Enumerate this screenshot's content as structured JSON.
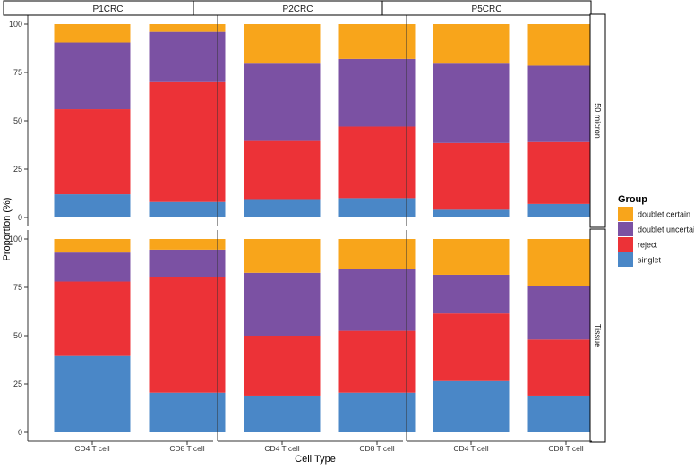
{
  "chart_data": {
    "type": "bar",
    "stacked": true,
    "xlabel": "Cell Type",
    "ylabel": "Proportion (%)",
    "ylim": [
      0,
      100
    ],
    "yticks": [
      0,
      25,
      50,
      75,
      100
    ],
    "categories": [
      "CD4 T cell",
      "CD8 T cell"
    ],
    "column_facets": [
      "P1CRC",
      "P2CRC",
      "P5CRC"
    ],
    "row_facets": [
      "50 micron",
      "Tissue"
    ],
    "legend": {
      "title": "Group",
      "position": "right",
      "entries": [
        {
          "name": "doublet certain",
          "color": "#F8A51B"
        },
        {
          "name": "doublet uncertain",
          "color": "#7B51A3"
        },
        {
          "name": "reject",
          "color": "#EC3237"
        },
        {
          "name": "singlet",
          "color": "#4A87C7"
        }
      ]
    },
    "stack_order": [
      "singlet",
      "reject",
      "doublet uncertain",
      "doublet certain"
    ],
    "panels": [
      {
        "row": "50 micron",
        "col": "P1CRC",
        "bars": [
          {
            "category": "CD4 T cell",
            "singlet": 12,
            "reject": 44,
            "doublet uncertain": 34.5,
            "doublet certain": 9.5
          },
          {
            "category": "CD8 T cell",
            "singlet": 8,
            "reject": 62,
            "doublet uncertain": 26,
            "doublet certain": 4
          }
        ]
      },
      {
        "row": "50 micron",
        "col": "P2CRC",
        "bars": [
          {
            "category": "CD4 T cell",
            "singlet": 9.5,
            "reject": 30.5,
            "doublet uncertain": 40,
            "doublet certain": 20
          },
          {
            "category": "CD8 T cell",
            "singlet": 10,
            "reject": 37,
            "doublet uncertain": 35,
            "doublet certain": 18
          }
        ]
      },
      {
        "row": "50 micron",
        "col": "P5CRC",
        "bars": [
          {
            "category": "CD4 T cell",
            "singlet": 4,
            "reject": 34.5,
            "doublet uncertain": 41.5,
            "doublet certain": 20
          },
          {
            "category": "CD8 T cell",
            "singlet": 7,
            "reject": 32,
            "doublet uncertain": 39.5,
            "doublet certain": 21.5
          }
        ]
      },
      {
        "row": "Tissue",
        "col": "P1CRC",
        "bars": [
          {
            "category": "CD4 T cell",
            "singlet": 39.5,
            "reject": 38.5,
            "doublet uncertain": 15,
            "doublet certain": 7
          },
          {
            "category": "CD8 T cell",
            "singlet": 20.5,
            "reject": 60,
            "doublet uncertain": 14,
            "doublet certain": 5.5
          }
        ]
      },
      {
        "row": "Tissue",
        "col": "P2CRC",
        "bars": [
          {
            "category": "CD4 T cell",
            "singlet": 19,
            "reject": 31,
            "doublet uncertain": 32.5,
            "doublet certain": 17.5
          },
          {
            "category": "CD8 T cell",
            "singlet": 20.5,
            "reject": 32,
            "doublet uncertain": 32,
            "doublet certain": 15.5
          }
        ]
      },
      {
        "row": "Tissue",
        "col": "P5CRC",
        "bars": [
          {
            "category": "CD4 T cell",
            "singlet": 26.5,
            "reject": 35,
            "doublet uncertain": 20,
            "doublet certain": 18.5
          },
          {
            "category": "CD8 T cell",
            "singlet": 19,
            "reject": 29,
            "doublet uncertain": 27.5,
            "doublet certain": 24.5
          }
        ]
      }
    ]
  }
}
